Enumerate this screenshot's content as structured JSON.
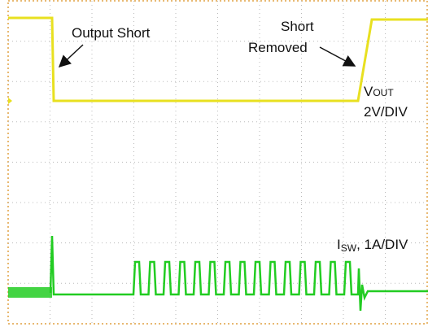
{
  "annotations": {
    "output_short": "Output Short",
    "short_removed": [
      "Short",
      "Removed"
    ]
  },
  "channels": {
    "vout": {
      "symbol": "V",
      "subscript": "OUT",
      "scale": "2V/DIV"
    },
    "isw": {
      "symbol": "I",
      "subscript": "SW",
      "scale": ", 1A/DIV"
    }
  }
}
